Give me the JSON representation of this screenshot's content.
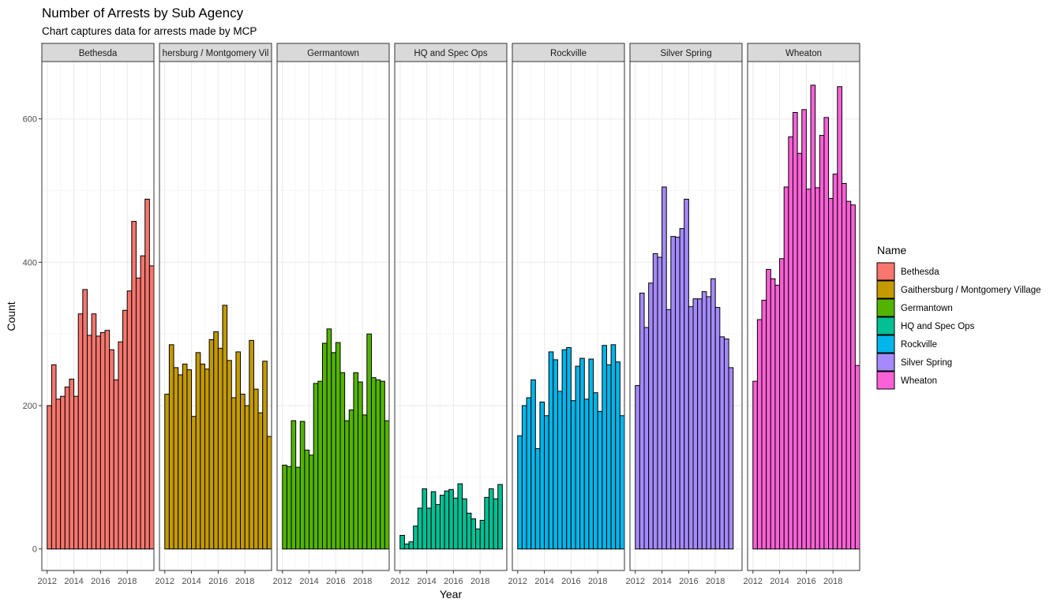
{
  "chart_data": {
    "type": "bar",
    "title": "Number of Arrests by Sub Agency",
    "subtitle": "Chart captures data for arrests made by MCP",
    "xlabel": "Year",
    "ylabel": "Count",
    "legend_title": "Name",
    "legend_position": "right",
    "grid": true,
    "ylim": [
      -30,
      680
    ],
    "y_ticks": [
      0,
      200,
      400,
      600
    ],
    "xlim": [
      2011.6,
      2020.0
    ],
    "x_ticks": [
      2012,
      2014,
      2016,
      2018
    ],
    "x_start": 2012.0,
    "bin_width": 0.3333,
    "bar_outline": "#000000",
    "strip_fill": "#d9d9d9",
    "facets": [
      {
        "name": "Bethesda",
        "strip_label": "Bethesda",
        "color": "#F8766D",
        "values": [
          200,
          257,
          209,
          213,
          226,
          237,
          213,
          328,
          362,
          298,
          328,
          297,
          302,
          305,
          278,
          236,
          289,
          333,
          360,
          457,
          378,
          409,
          488,
          395
        ]
      },
      {
        "name": "Gaithersburg / Montgomery Village",
        "strip_label": "hersburg / Montgomery Vil",
        "color": "#C49A00",
        "values": [
          216,
          285,
          253,
          243,
          258,
          250,
          185,
          274,
          258,
          251,
          292,
          303,
          280,
          340,
          263,
          211,
          275,
          216,
          200,
          291,
          223,
          190,
          262,
          157
        ]
      },
      {
        "name": "Germantown",
        "strip_label": "Germantown",
        "color": "#53B400",
        "values": [
          117,
          115,
          179,
          114,
          178,
          138,
          131,
          231,
          234,
          287,
          307,
          274,
          288,
          246,
          179,
          194,
          246,
          233,
          187,
          300,
          239,
          236,
          234,
          179
        ]
      },
      {
        "name": "HQ and Spec Ops",
        "strip_label": "HQ and Spec Ops",
        "color": "#00C094",
        "values": [
          19,
          7,
          10,
          32,
          57,
          84,
          57,
          80,
          62,
          75,
          81,
          83,
          71,
          91,
          70,
          50,
          42,
          28,
          40,
          72,
          84,
          70,
          90,
          0
        ]
      },
      {
        "name": "Rockville",
        "strip_label": "Rockville",
        "color": "#00B6EB",
        "values": [
          158,
          200,
          211,
          236,
          140,
          205,
          186,
          275,
          264,
          220,
          278,
          281,
          207,
          255,
          266,
          209,
          265,
          218,
          192,
          284,
          257,
          285,
          261,
          186
        ]
      },
      {
        "name": "Silver Spring",
        "strip_label": "Silver Spring",
        "color": "#A58AFF",
        "values": [
          228,
          357,
          309,
          371,
          412,
          407,
          505,
          334,
          436,
          435,
          447,
          488,
          338,
          349,
          349,
          359,
          352,
          377,
          337,
          296,
          293,
          253,
          0,
          0
        ]
      },
      {
        "name": "Wheaton",
        "strip_label": "Wheaton",
        "color": "#FB61D7",
        "values": [
          234,
          320,
          347,
          390,
          377,
          368,
          405,
          505,
          575,
          609,
          552,
          613,
          502,
          647,
          504,
          577,
          602,
          489,
          523,
          645,
          510,
          485,
          480,
          256
        ]
      }
    ]
  }
}
